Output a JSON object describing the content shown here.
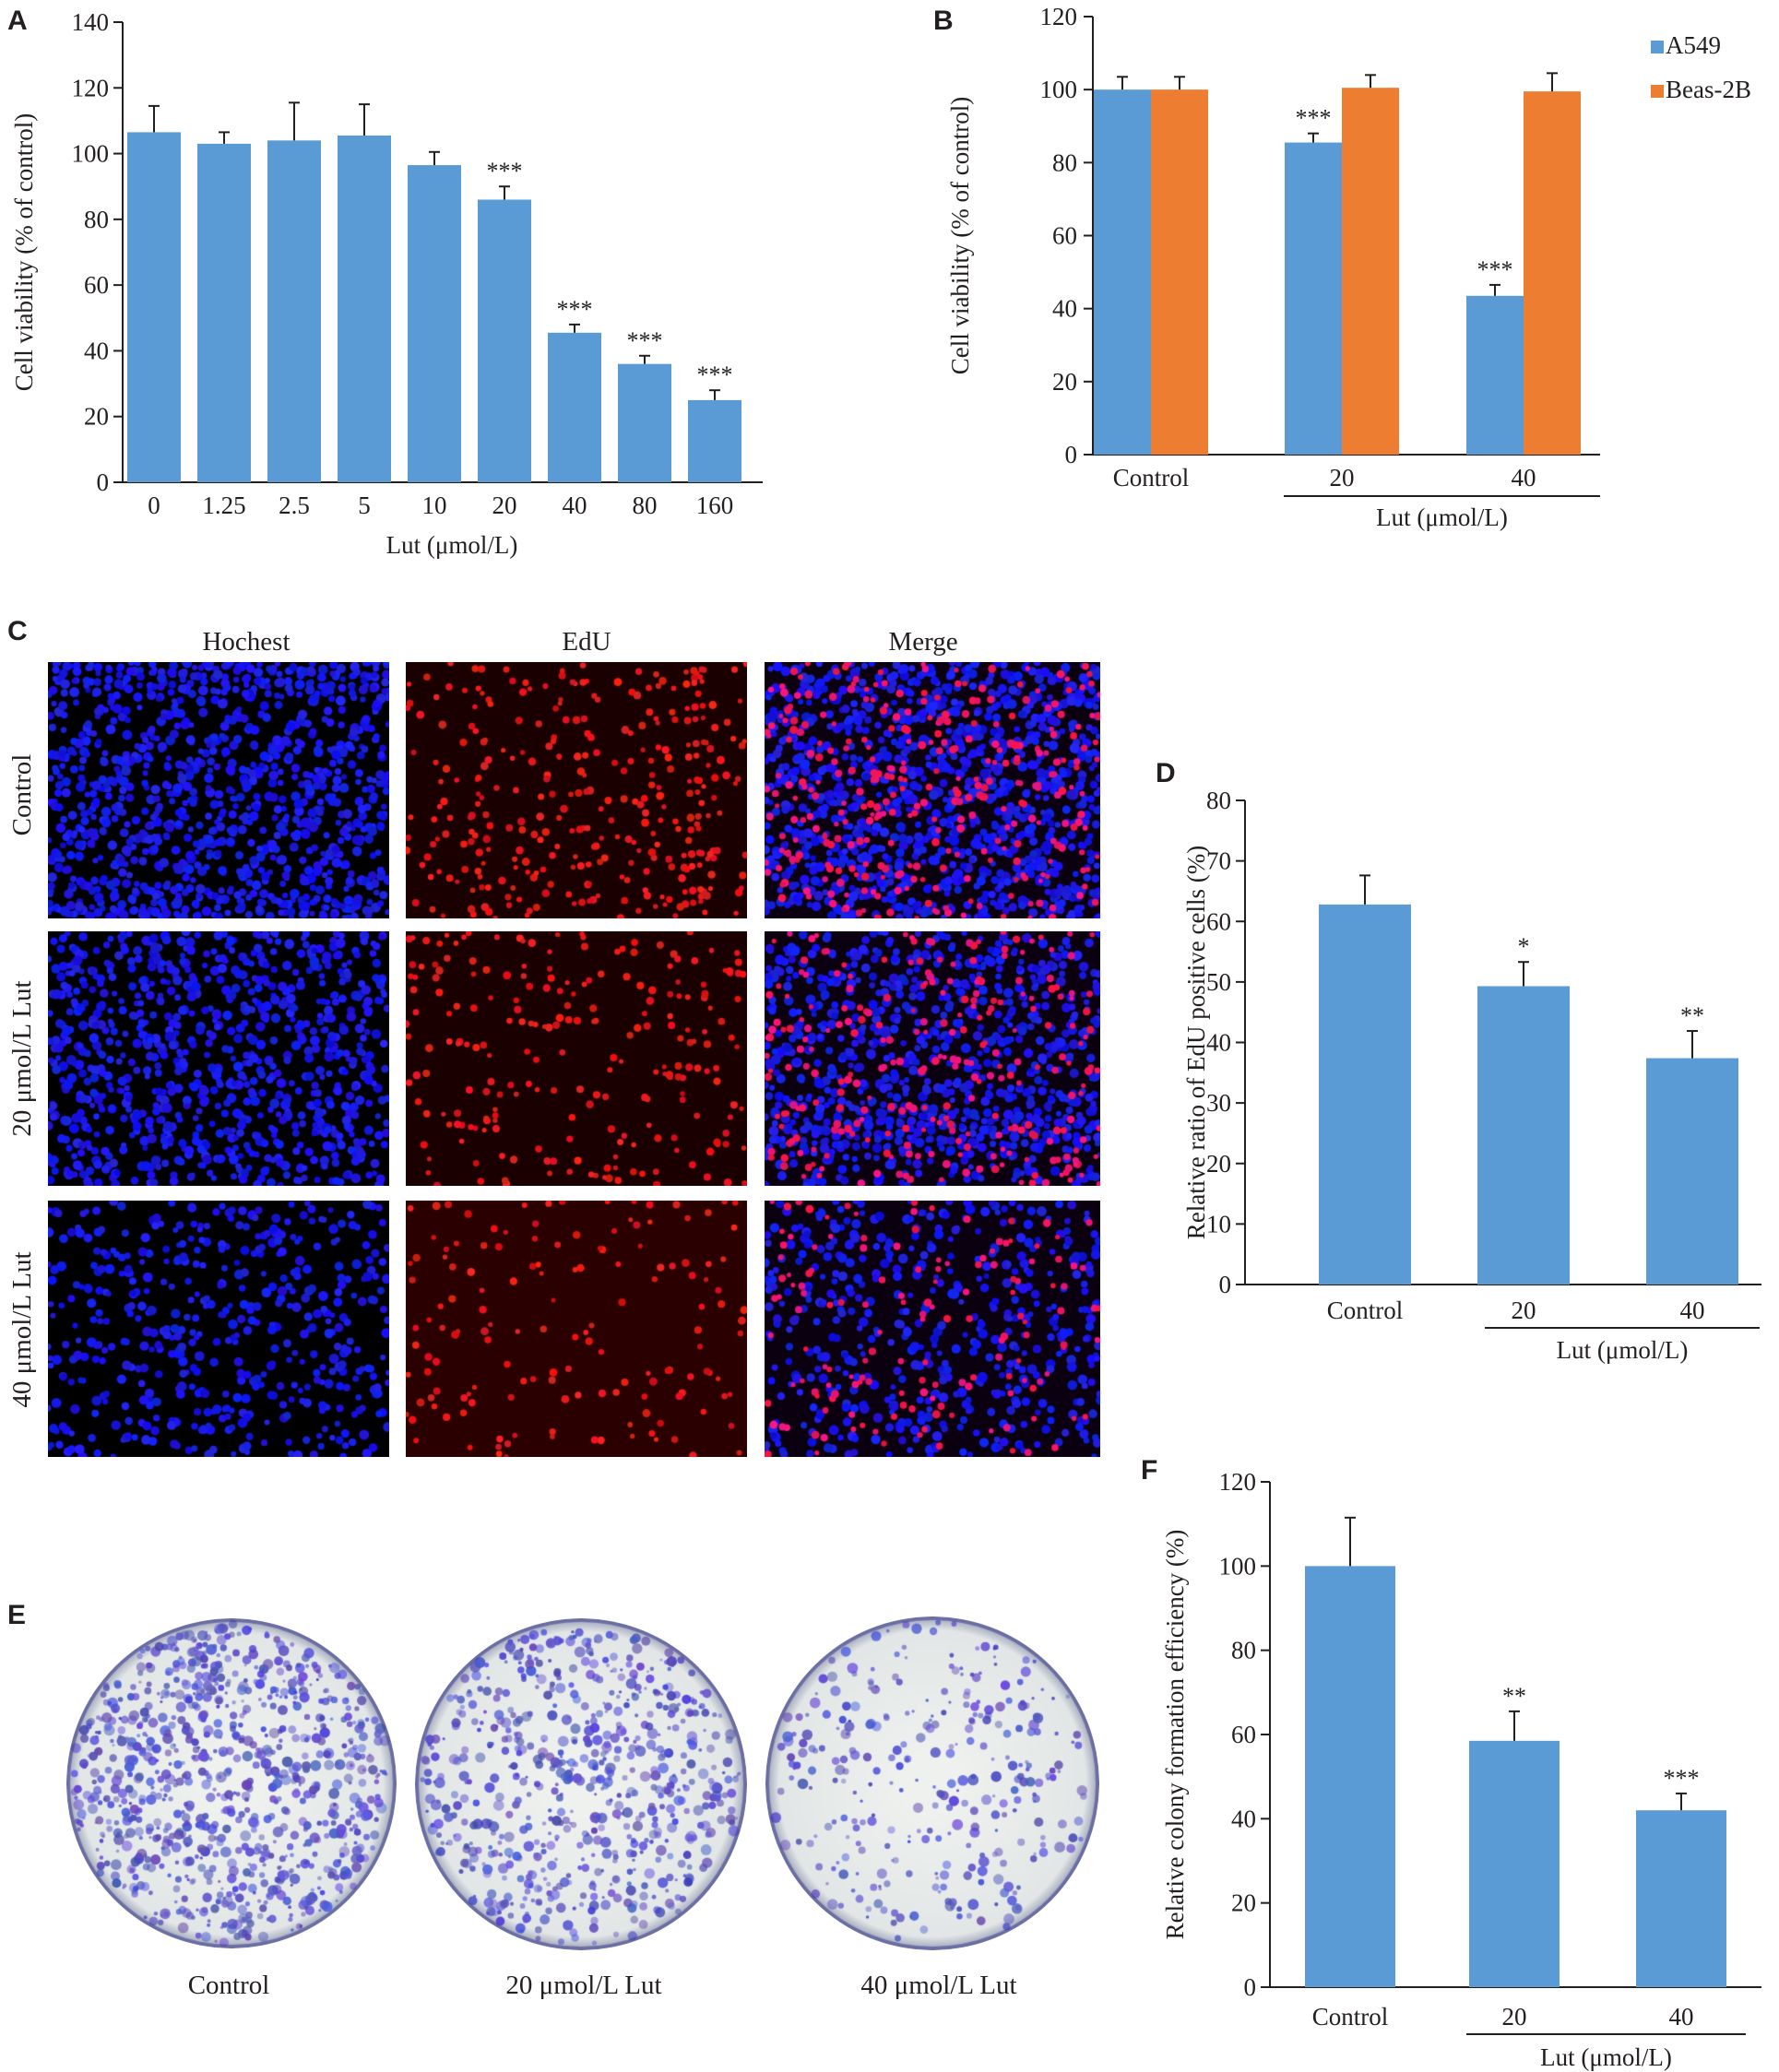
{
  "panels": {
    "A": "A",
    "B": "B",
    "C": "C",
    "D": "D",
    "E": "E",
    "F": "F"
  },
  "chart_data": [
    {
      "id": "A",
      "type": "bar",
      "categories": [
        "0",
        "1.25",
        "2.5",
        "5",
        "10",
        "20",
        "40",
        "80",
        "160"
      ],
      "values": [
        106.5,
        103,
        104,
        105.5,
        96.5,
        86,
        45.5,
        36,
        25
      ],
      "errors": [
        8,
        3.5,
        11.5,
        9.5,
        4,
        4,
        2.5,
        2.5,
        3
      ],
      "significance": [
        "",
        "",
        "",
        "",
        "",
        "***",
        "***",
        "***",
        "***"
      ],
      "xlabel": "Lut (μmol/L)",
      "ylabel": "Cell viability (% of control)",
      "ylim": [
        0,
        140
      ],
      "yticks": [
        0,
        20,
        40,
        60,
        80,
        100,
        120,
        140
      ],
      "color": "#5b9bd5"
    },
    {
      "id": "B",
      "type": "bar",
      "categories": [
        "Control",
        "20",
        "40"
      ],
      "series": [
        {
          "name": "A549",
          "values": [
            100,
            85.5,
            43.5
          ],
          "errors": [
            3.5,
            2.5,
            3
          ],
          "significance": [
            "",
            "***",
            "***"
          ],
          "color": "#5b9bd5"
        },
        {
          "name": "Beas-2B",
          "values": [
            100,
            100.5,
            99.5
          ],
          "errors": [
            3.5,
            3.5,
            5
          ],
          "significance": [
            "",
            "",
            ""
          ],
          "color": "#ed7d31"
        }
      ],
      "group_label": "Lut (μmol/L)",
      "ylabel": "Cell viability (% of control)",
      "ylim": [
        0,
        120
      ],
      "yticks": [
        0,
        20,
        40,
        60,
        80,
        100,
        120
      ],
      "legend": "top-right"
    },
    {
      "id": "D",
      "type": "bar",
      "categories": [
        "Control",
        "20",
        "40"
      ],
      "values": [
        62.8,
        49.3,
        37.4
      ],
      "errors": [
        4.8,
        4,
        4.5
      ],
      "significance": [
        "",
        "*",
        "**"
      ],
      "group_label": "Lut (μmol/L)",
      "ylabel": "Relative ratio of EdU positive cells (%)",
      "ylim": [
        0,
        80
      ],
      "yticks": [
        0,
        10,
        20,
        30,
        40,
        50,
        60,
        70,
        80
      ],
      "color": "#5b9bd5"
    },
    {
      "id": "F",
      "type": "bar",
      "categories": [
        "Control",
        "20",
        "40"
      ],
      "values": [
        100,
        58.5,
        42
      ],
      "errors": [
        11.5,
        7,
        4
      ],
      "significance": [
        "",
        "**",
        "***"
      ],
      "group_label": "Lut (μmol/L)",
      "ylabel": "Relative colony formation efficiency (%)",
      "ylim": [
        0,
        120
      ],
      "yticks": [
        0,
        20,
        40,
        60,
        80,
        100,
        120
      ],
      "color": "#5b9bd5"
    }
  ],
  "panel_c": {
    "columns": [
      "Hochest",
      "EdU",
      "Merge"
    ],
    "rows": [
      "Control",
      "20 μmol/L Lut",
      "40 μmol/L Lut"
    ]
  },
  "panel_e": {
    "labels": [
      "Control",
      "20 μmol/L Lut",
      "40 μmol/L Lut"
    ]
  }
}
